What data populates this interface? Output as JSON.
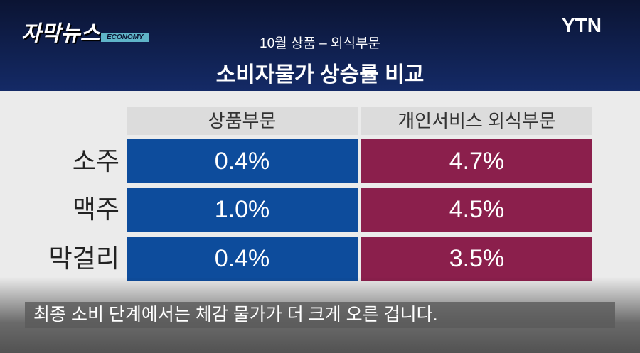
{
  "header": {
    "logo": "자막뉴스",
    "logo_tag": "ECONOMY",
    "channel": "YTN",
    "subtitle": "10월 상품 – 외식부문",
    "title": "소비자물가 상승률 비교"
  },
  "table": {
    "columns": [
      "상품부문",
      "개인서비스 외식부문"
    ],
    "rows": [
      [
        "소주",
        "0.4%",
        "4.7%"
      ],
      [
        "맥주",
        "1.0%",
        "4.5%"
      ],
      [
        "막걸리",
        "0.4%",
        "3.5%"
      ]
    ]
  },
  "caption": "최종 소비 단계에서는 체감 물가가 더 크게 오른 겁니다."
}
